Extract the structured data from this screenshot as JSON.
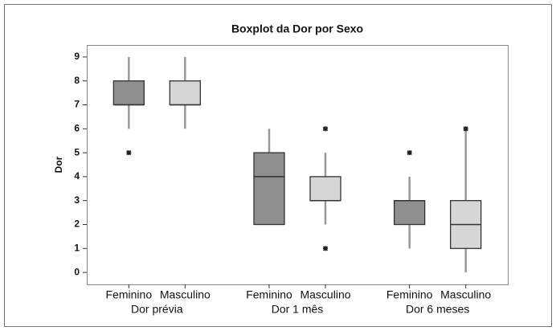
{
  "chart_data": {
    "type": "box",
    "title": "Boxplot da Dor por Sexo",
    "ylabel": "Dor",
    "groups": [
      "Dor prévia",
      "Dor 1 mês",
      "Dor 6 meses"
    ],
    "series": [
      {
        "name": "Feminino",
        "color": "#8f8f8f",
        "boxes": [
          {
            "min": 6,
            "q1": 7,
            "median": 7,
            "q3": 8,
            "max": 9,
            "outliers": [
              5
            ]
          },
          {
            "min": 2,
            "q1": 2,
            "median": 4,
            "q3": 5,
            "max": 6,
            "outliers": []
          },
          {
            "min": 1,
            "q1": 2,
            "median": 3,
            "q3": 3,
            "max": 4,
            "outliers": [
              5
            ]
          }
        ]
      },
      {
        "name": "Masculino",
        "color": "#d6d6d6",
        "boxes": [
          {
            "min": 6,
            "q1": 7,
            "median": 7,
            "q3": 8,
            "max": 9,
            "outliers": []
          },
          {
            "min": 2,
            "q1": 3,
            "median": 3,
            "q3": 4,
            "max": 5,
            "outliers": [
              6,
              1
            ]
          },
          {
            "min": 0,
            "q1": 1,
            "median": 2,
            "q3": 3,
            "max": 6,
            "outliers": [
              6
            ]
          }
        ]
      }
    ],
    "ylim": [
      -0.5,
      9.5
    ],
    "yticks": [
      0,
      1,
      2,
      3,
      4,
      5,
      6,
      7,
      8,
      9
    ]
  }
}
